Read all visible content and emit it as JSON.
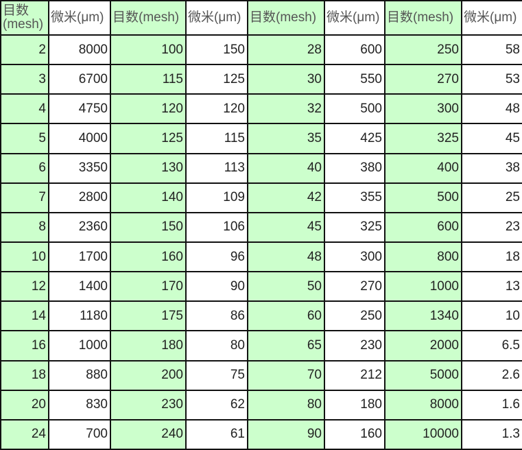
{
  "headers": [
    "目数(mesh)",
    "微米(μm)",
    "目数(mesh)",
    "微米(μm)",
    "目数(mesh)",
    "微米(μm)",
    "目数(mesh)",
    "微米(μm)"
  ],
  "first_header_lines": [
    "目数",
    "(mesh)"
  ],
  "colors": {
    "mesh_column_bg": "#ccffcc",
    "micron_column_bg": "#ffffff",
    "border": "#111111"
  },
  "rows": [
    [
      "2",
      "8000",
      "100",
      "150",
      "28",
      "600",
      "250",
      "58"
    ],
    [
      "3",
      "6700",
      "115",
      "125",
      "30",
      "550",
      "270",
      "53"
    ],
    [
      "4",
      "4750",
      "120",
      "120",
      "32",
      "500",
      "300",
      "48"
    ],
    [
      "5",
      "4000",
      "125",
      "115",
      "35",
      "425",
      "325",
      "45"
    ],
    [
      "6",
      "3350",
      "130",
      "113",
      "40",
      "380",
      "400",
      "38"
    ],
    [
      "7",
      "2800",
      "140",
      "109",
      "42",
      "355",
      "500",
      "25"
    ],
    [
      "8",
      "2360",
      "150",
      "106",
      "45",
      "325",
      "600",
      "23"
    ],
    [
      "10",
      "1700",
      "160",
      "96",
      "48",
      "300",
      "800",
      "18"
    ],
    [
      "12",
      "1400",
      "170",
      "90",
      "50",
      "270",
      "1000",
      "13"
    ],
    [
      "14",
      "1180",
      "175",
      "86",
      "60",
      "250",
      "1340",
      "10"
    ],
    [
      "16",
      "1000",
      "180",
      "80",
      "65",
      "230",
      "2000",
      "6.5"
    ],
    [
      "18",
      "880",
      "200",
      "75",
      "70",
      "212",
      "5000",
      "2.6"
    ],
    [
      "20",
      "830",
      "230",
      "62",
      "80",
      "180",
      "8000",
      "1.6"
    ],
    [
      "24",
      "700",
      "240",
      "61",
      "90",
      "160",
      "10000",
      "1.3"
    ]
  ]
}
